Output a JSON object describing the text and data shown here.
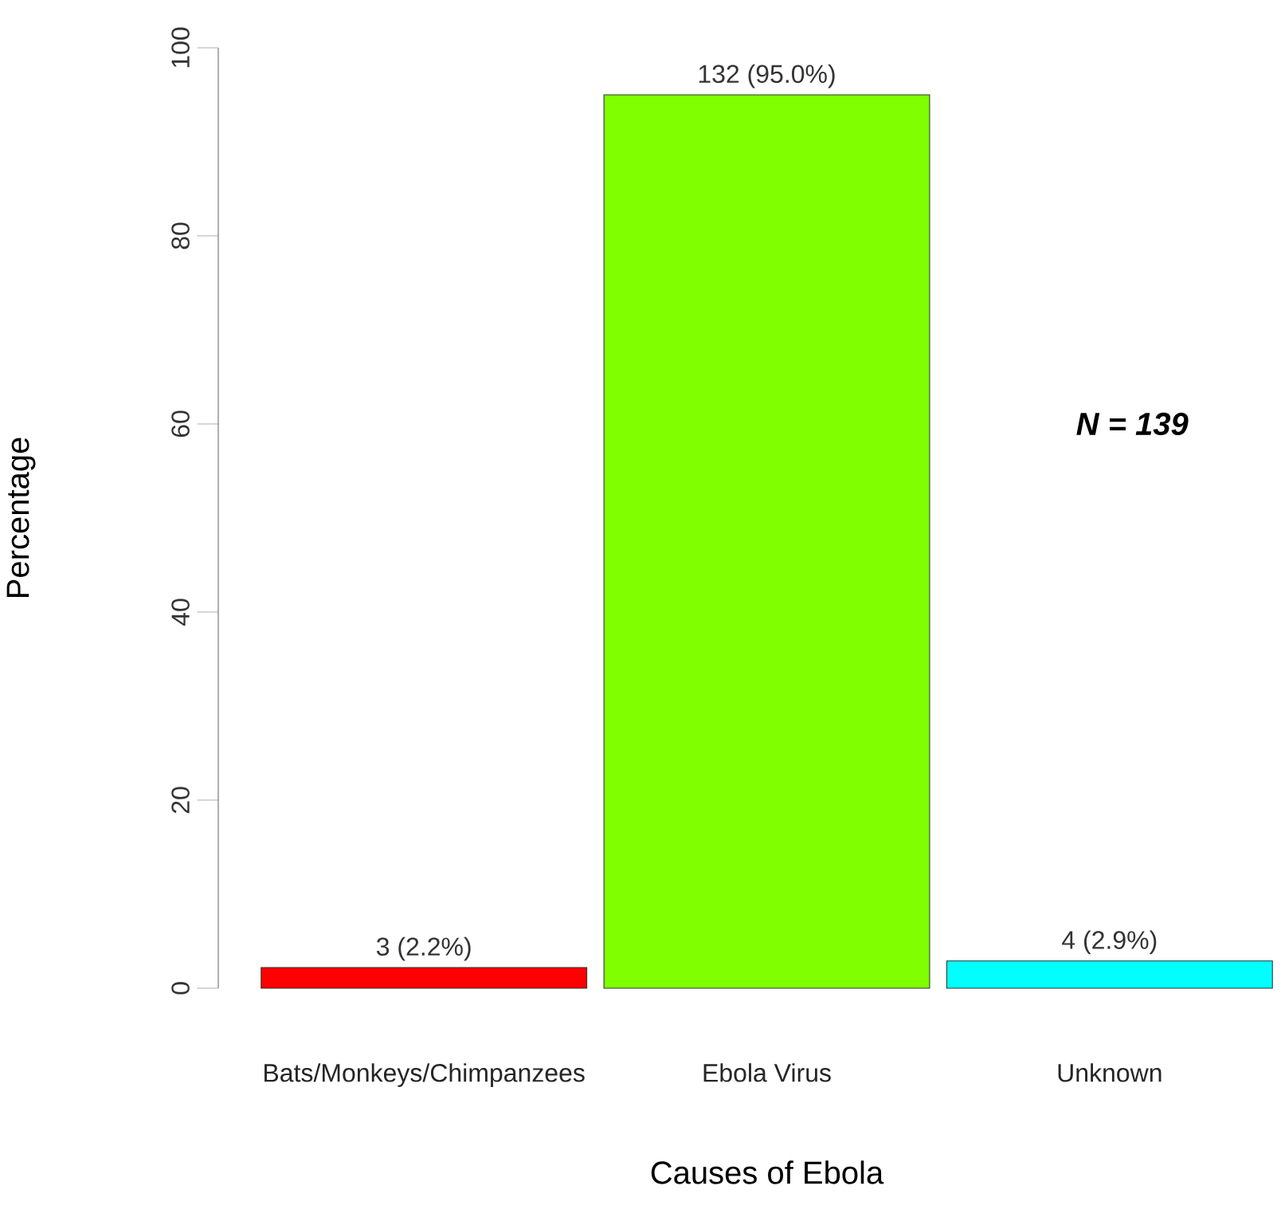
{
  "chart_data": {
    "type": "bar",
    "xlabel": "Causes of Ebola",
    "ylabel": "Percentage",
    "categories": [
      "Bats/Monkeys/Chimpanzees",
      "Ebola Virus",
      "Unknown"
    ],
    "values": [
      2.2,
      95.0,
      2.9
    ],
    "value_labels": [
      "3 (2.2%)",
      "132 (95.0%)",
      "4 (2.9%)"
    ],
    "colors": [
      "#ff0000",
      "#7fff00",
      "#00ffff"
    ],
    "ylim": [
      0,
      100
    ],
    "yticks": [
      0,
      20,
      40,
      60,
      80,
      100
    ],
    "annotations": [
      "N = 139"
    ]
  }
}
